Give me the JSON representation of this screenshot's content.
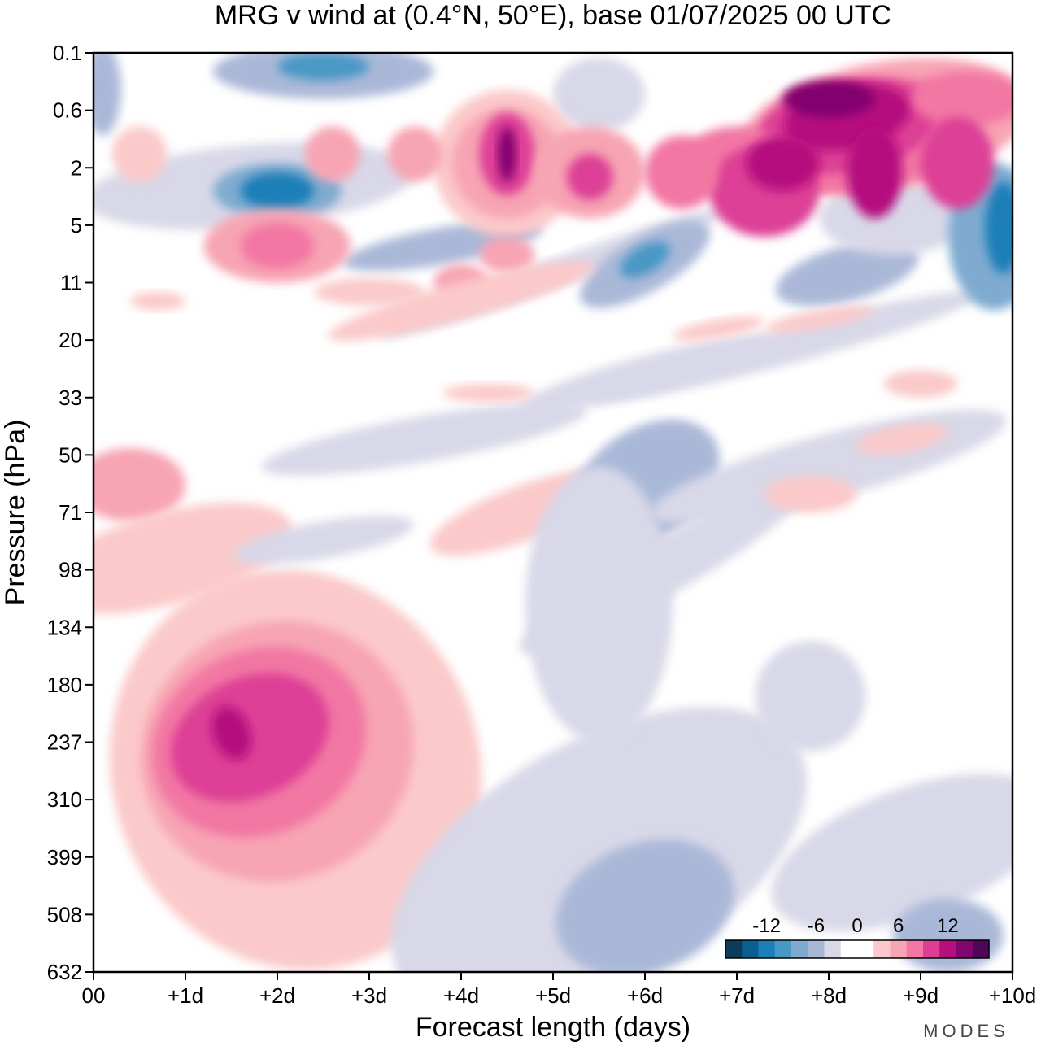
{
  "chart_data": {
    "type": "heatmap",
    "title": "MRG v wind at (0.4°N, 50°E),  base 01/07/2025  00 UTC",
    "xlabel": "Forecast length (days)",
    "ylabel": "Pressure (hPa)",
    "x_ticks": [
      "00",
      "+1d",
      "+2d",
      "+3d",
      "+4d",
      "+5d",
      "+6d",
      "+7d",
      "+8d",
      "+9d",
      "+10d"
    ],
    "y_ticks": [
      "0.1",
      "0.6",
      "2",
      "5",
      "11",
      "20",
      "33",
      "50",
      "71",
      "98",
      "134",
      "180",
      "237",
      "310",
      "399",
      "508",
      "632"
    ],
    "xlim": [
      0,
      10
    ],
    "ylim": [
      632,
      0.1
    ],
    "colorbar": {
      "labels": [
        "-12",
        "-6",
        "0",
        "6",
        "12"
      ],
      "levels": [
        -16,
        -14,
        -12,
        -10,
        -8,
        -6,
        -4,
        -2,
        2,
        4,
        6,
        8,
        10,
        12,
        14,
        16
      ],
      "colors": [
        "#0b3d5a",
        "#0a5f8e",
        "#1b7fb8",
        "#4a98c6",
        "#7fabd0",
        "#aab8d8",
        "#d8d8e8",
        "#ffffff",
        "#ffffff",
        "#fbc9c9",
        "#f7a4b4",
        "#f277a3",
        "#dd3f96",
        "#b5107e",
        "#82066f",
        "#4f0658"
      ]
    },
    "features": [
      {
        "shape": "upper-atmosphere band",
        "day_range": [
          6.5,
          10
        ],
        "pressure_range": [
          0.1,
          5
        ],
        "max_value": 16
      },
      {
        "shape": "upper lobe",
        "day_range": [
          4,
          5.8
        ],
        "pressure_range": [
          0.3,
          5
        ],
        "max_value": 14
      },
      {
        "shape": "lower-level maximum",
        "day_range": [
          0,
          3.8
        ],
        "pressure_range": [
          50,
          500
        ],
        "max_value": 14,
        "center_day": 1.5,
        "center_pressure": 237
      },
      {
        "shape": "negative anomaly",
        "day_range": [
          1,
          2.5
        ],
        "pressure_range": [
          1.5,
          3
        ],
        "max_value": -14
      },
      {
        "shape": "negative anomaly",
        "day_range": [
          9.5,
          10
        ],
        "pressure_range": [
          3,
          11
        ],
        "max_value": -12
      },
      {
        "shape": "negative anomaly",
        "day_range": [
          5,
          7
        ],
        "pressure_range": [
          40,
          110
        ],
        "max_value": -8
      }
    ]
  },
  "branding": {
    "logo_text": "MODES"
  }
}
